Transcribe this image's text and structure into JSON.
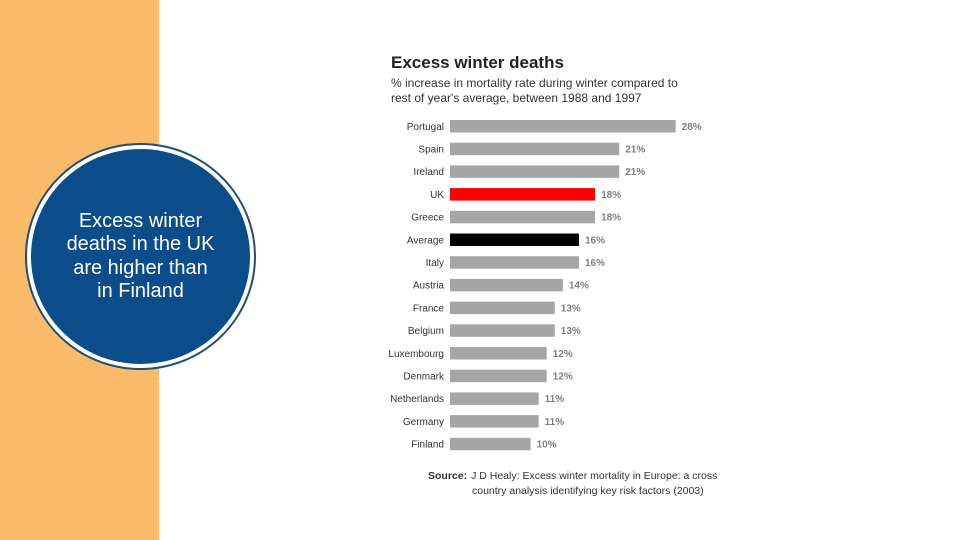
{
  "badge": {
    "text": "Excess winter deaths in the UK are higher than in Finland"
  },
  "colors": {
    "panel": "#FBBB6B",
    "badge": "#0B4C8A",
    "bar": "#A6A6A6",
    "highlight": "#FF0000",
    "average": "#000000"
  },
  "chart_data": {
    "type": "bar",
    "orientation": "horizontal",
    "title": "Excess winter deaths",
    "subtitle_lines": [
      "% increase in mortality rate during winter compared to",
      "rest of year's average, between 1988 and 1997"
    ],
    "categories": [
      "Portugal",
      "Spain",
      "Ireland",
      "UK",
      "Greece",
      "Average",
      "Italy",
      "Austria",
      "France",
      "Belgium",
      "Luxembourg",
      "Denmark",
      "Netherlands",
      "Germany",
      "Finland"
    ],
    "values": [
      28,
      21,
      21,
      18,
      18,
      16,
      16,
      14,
      13,
      13,
      12,
      12,
      11,
      11,
      10
    ],
    "value_labels": [
      "28%",
      "21%",
      "21%",
      "18%",
      "18%",
      "16%",
      "16%",
      "14%",
      "13%",
      "13%",
      "12%",
      "12%",
      "11%",
      "11%",
      "10%"
    ],
    "highlight": {
      "UK": "#FF0000",
      "Average": "#000000"
    },
    "source_label": "Source:",
    "source_lines": [
      "J D Healy: Excess winter mortality in Europe: a cross",
      "country analysis identifying key risk factors (2003)"
    ]
  }
}
